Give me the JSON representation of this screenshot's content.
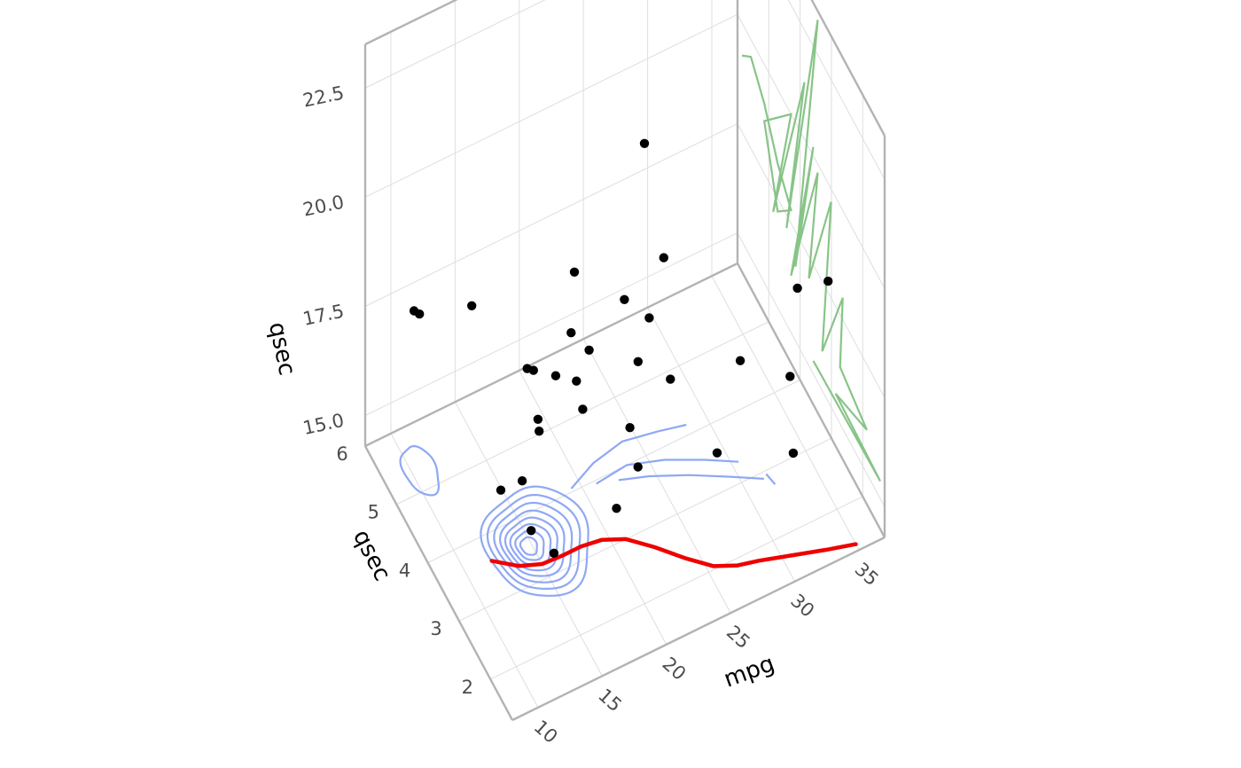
{
  "chart_data": {
    "type": "scatter",
    "subtype": "3d-projection",
    "title": "",
    "axes": {
      "x": {
        "label": "mpg",
        "ticks": [
          10,
          15,
          20,
          25,
          30,
          35
        ],
        "range": [
          8,
          37
        ]
      },
      "y": {
        "label": "qsec",
        "ticks": [
          2,
          3,
          4,
          5,
          6
        ],
        "range": [
          1.3,
          6.0
        ]
      },
      "z": {
        "label": "qsec",
        "ticks": [
          15.0,
          17.5,
          20.0,
          22.5
        ],
        "range": [
          14.3,
          23.5
        ]
      }
    },
    "grid": true,
    "colors": {
      "points": "#000000",
      "density": "#8fa8f4",
      "smooth": "#ee0000",
      "wall_path": "#88c488",
      "frame": "#b3b3b3"
    },
    "points": [
      {
        "mpg": 21.0,
        "y": 2.62,
        "qsec": 16.46
      },
      {
        "mpg": 21.0,
        "y": 2.875,
        "qsec": 17.02
      },
      {
        "mpg": 22.8,
        "y": 2.32,
        "qsec": 18.61
      },
      {
        "mpg": 21.4,
        "y": 3.215,
        "qsec": 19.44
      },
      {
        "mpg": 18.7,
        "y": 3.44,
        "qsec": 17.02
      },
      {
        "mpg": 18.1,
        "y": 3.46,
        "qsec": 20.22
      },
      {
        "mpg": 14.3,
        "y": 3.57,
        "qsec": 15.84
      },
      {
        "mpg": 24.4,
        "y": 3.19,
        "qsec": 20.0
      },
      {
        "mpg": 22.8,
        "y": 3.15,
        "qsec": 22.9
      },
      {
        "mpg": 19.2,
        "y": 3.44,
        "qsec": 18.3
      },
      {
        "mpg": 17.8,
        "y": 3.44,
        "qsec": 18.9
      },
      {
        "mpg": 16.4,
        "y": 4.07,
        "qsec": 17.4
      },
      {
        "mpg": 17.3,
        "y": 3.73,
        "qsec": 17.6
      },
      {
        "mpg": 15.2,
        "y": 3.78,
        "qsec": 18.0
      },
      {
        "mpg": 10.4,
        "y": 5.25,
        "qsec": 17.98
      },
      {
        "mpg": 10.4,
        "y": 5.424,
        "qsec": 17.82
      },
      {
        "mpg": 14.7,
        "y": 5.345,
        "qsec": 17.42
      },
      {
        "mpg": 32.4,
        "y": 2.2,
        "qsec": 19.47
      },
      {
        "mpg": 30.4,
        "y": 1.615,
        "qsec": 18.52
      },
      {
        "mpg": 33.9,
        "y": 1.835,
        "qsec": 19.9
      },
      {
        "mpg": 21.5,
        "y": 2.465,
        "qsec": 20.01
      },
      {
        "mpg": 15.5,
        "y": 3.52,
        "qsec": 16.87
      },
      {
        "mpg": 15.2,
        "y": 3.435,
        "qsec": 17.3
      },
      {
        "mpg": 13.3,
        "y": 3.84,
        "qsec": 15.41
      },
      {
        "mpg": 19.2,
        "y": 3.845,
        "qsec": 17.05
      },
      {
        "mpg": 27.3,
        "y": 1.935,
        "qsec": 18.9
      },
      {
        "mpg": 26.0,
        "y": 2.14,
        "qsec": 16.7
      },
      {
        "mpg": 30.4,
        "y": 1.513,
        "qsec": 16.9
      },
      {
        "mpg": 15.8,
        "y": 3.17,
        "qsec": 14.5
      },
      {
        "mpg": 19.7,
        "y": 2.77,
        "qsec": 15.5
      },
      {
        "mpg": 15.0,
        "y": 3.57,
        "qsec": 14.6
      },
      {
        "mpg": 21.4,
        "y": 2.78,
        "qsec": 18.6
      }
    ],
    "smooth_line": [
      {
        "mpg": 12.0,
        "y": 3.6
      },
      {
        "mpg": 13.5,
        "y": 3.35
      },
      {
        "mpg": 15.0,
        "y": 3.22
      },
      {
        "mpg": 16.5,
        "y": 3.2
      },
      {
        "mpg": 18.0,
        "y": 3.2
      },
      {
        "mpg": 19.5,
        "y": 3.15
      },
      {
        "mpg": 21.0,
        "y": 3.0
      },
      {
        "mpg": 22.5,
        "y": 2.7
      },
      {
        "mpg": 24.0,
        "y": 2.35
      },
      {
        "mpg": 25.5,
        "y": 2.05
      },
      {
        "mpg": 27.0,
        "y": 1.9
      },
      {
        "mpg": 28.5,
        "y": 1.82
      },
      {
        "mpg": 30.0,
        "y": 1.72
      },
      {
        "mpg": 31.5,
        "y": 1.62
      },
      {
        "mpg": 33.0,
        "y": 1.52
      },
      {
        "mpg": 35.0,
        "y": 1.4
      }
    ],
    "density_contours": [
      {
        "cx": 15.5,
        "cy": 3.55,
        "rx": 3.6,
        "ry": 0.85
      },
      {
        "cx": 15.4,
        "cy": 3.55,
        "rx": 3.1,
        "ry": 0.73
      },
      {
        "cx": 15.3,
        "cy": 3.55,
        "rx": 2.6,
        "ry": 0.62
      },
      {
        "cx": 15.2,
        "cy": 3.55,
        "rx": 2.15,
        "ry": 0.51
      },
      {
        "cx": 15.1,
        "cy": 3.55,
        "rx": 1.75,
        "ry": 0.41
      },
      {
        "cx": 15.0,
        "cy": 3.55,
        "rx": 1.35,
        "ry": 0.32
      },
      {
        "cx": 14.9,
        "cy": 3.55,
        "rx": 0.95,
        "ry": 0.23
      },
      {
        "cx": 14.8,
        "cy": 3.55,
        "rx": 0.55,
        "ry": 0.14
      },
      {
        "cx": 10.6,
        "cy": 5.3,
        "rx": 1.1,
        "ry": 0.4
      }
    ],
    "density_open_paths": [
      [
        [
          19.3,
          4.05
        ],
        [
          21.5,
          4.25
        ],
        [
          24.0,
          4.35
        ],
        [
          26.5,
          4.25
        ],
        [
          28.5,
          4.15
        ]
      ],
      [
        [
          21.0,
          3.95
        ],
        [
          23.5,
          4.0
        ],
        [
          26.0,
          3.82
        ],
        [
          28.5,
          3.55
        ],
        [
          30.5,
          3.3
        ]
      ],
      [
        [
          22.5,
          3.85
        ],
        [
          24.5,
          3.7
        ],
        [
          27.0,
          3.45
        ],
        [
          29.5,
          3.15
        ],
        [
          31.5,
          2.9
        ]
      ],
      [
        [
          31.8,
          2.95
        ],
        [
          32.0,
          2.75
        ]
      ]
    ],
    "wall_path": [
      [
        8.5,
        19.25
      ],
      [
        9.5,
        19.6
      ],
      [
        11.0,
        19.1
      ],
      [
        12.5,
        18.3
      ],
      [
        14.0,
        17.8
      ],
      [
        12.5,
        17.2
      ],
      [
        11.0,
        18.7
      ],
      [
        14.0,
        20.0
      ],
      [
        12.0,
        17.0
      ],
      [
        15.5,
        21.3
      ],
      [
        13.5,
        17.2
      ],
      [
        17.0,
        23.3
      ],
      [
        14.5,
        16.7
      ],
      [
        16.5,
        20.2
      ],
      [
        14.0,
        16.3
      ],
      [
        17.0,
        19.8
      ],
      [
        16.0,
        17.0
      ],
      [
        18.5,
        19.7
      ],
      [
        17.5,
        15.9
      ],
      [
        19.8,
        18.0
      ],
      [
        19.5,
        16.3
      ],
      [
        22.5,
        16.0
      ],
      [
        19.0,
        15.5
      ],
      [
        24.0,
        15.4
      ],
      [
        16.5,
        15.3
      ]
    ]
  }
}
